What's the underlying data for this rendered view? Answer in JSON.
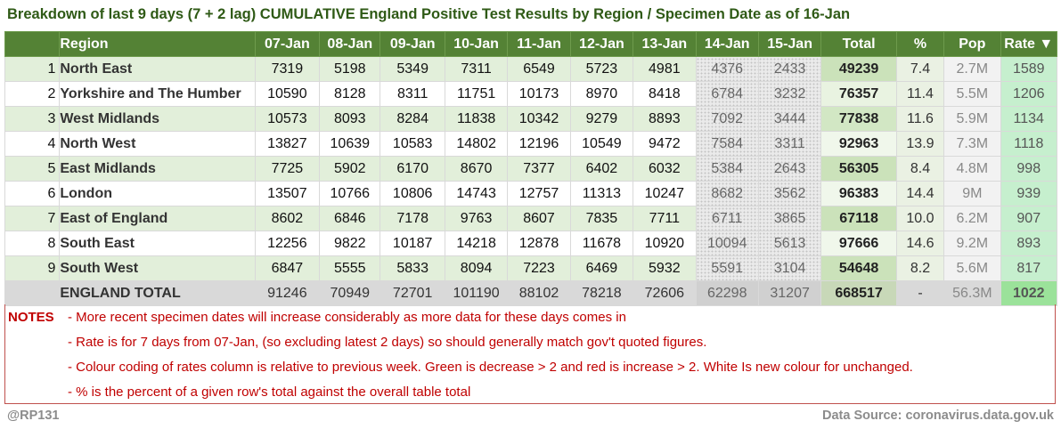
{
  "title": "Breakdown of last 9 days (7 + 2 lag) CUMULATIVE England Positive Test Results by Region / Specimen Date as of 16-Jan",
  "headers": {
    "region": "Region",
    "dates": [
      "07-Jan",
      "08-Jan",
      "09-Jan",
      "10-Jan",
      "11-Jan",
      "12-Jan",
      "13-Jan",
      "14-Jan",
      "15-Jan"
    ],
    "total": "Total",
    "pct": "%",
    "pop": "Pop",
    "rate": "Rate ▼"
  },
  "rows": [
    {
      "idx": "1",
      "region": "North East",
      "vals": [
        "7319",
        "5198",
        "5349",
        "7311",
        "6549",
        "5723",
        "4981",
        "4376",
        "2433"
      ],
      "total": "49239",
      "pct": "7.4",
      "pop": "2.7M",
      "rate": "1589",
      "total_shade": 0.55
    },
    {
      "idx": "2",
      "region": "Yorkshire and The Humber",
      "vals": [
        "10590",
        "8128",
        "8311",
        "11751",
        "10173",
        "8970",
        "8418",
        "6784",
        "3232"
      ],
      "total": "76357",
      "pct": "11.4",
      "pop": "5.5M",
      "rate": "1206",
      "total_shade": 0.15
    },
    {
      "idx": "3",
      "region": "West Midlands",
      "vals": [
        "10573",
        "8093",
        "8284",
        "11838",
        "10342",
        "9279",
        "8893",
        "7092",
        "3444"
      ],
      "total": "77838",
      "pct": "11.6",
      "pop": "5.9M",
      "rate": "1134",
      "total_shade": 0.45
    },
    {
      "idx": "4",
      "region": "North West",
      "vals": [
        "13827",
        "10639",
        "10583",
        "14802",
        "12196",
        "10549",
        "9472",
        "7584",
        "3311"
      ],
      "total": "92963",
      "pct": "13.9",
      "pop": "7.3M",
      "rate": "1118",
      "total_shade": 0.05
    },
    {
      "idx": "5",
      "region": "East Midlands",
      "vals": [
        "7725",
        "5902",
        "6170",
        "8670",
        "7377",
        "6402",
        "6032",
        "5384",
        "2643"
      ],
      "total": "56305",
      "pct": "8.4",
      "pop": "4.8M",
      "rate": "998",
      "total_shade": 0.55
    },
    {
      "idx": "6",
      "region": "London",
      "vals": [
        "13507",
        "10766",
        "10806",
        "14743",
        "12757",
        "11313",
        "10247",
        "8682",
        "3562"
      ],
      "total": "96383",
      "pct": "14.4",
      "pop": "9M",
      "rate": "939",
      "total_shade": 0.05
    },
    {
      "idx": "7",
      "region": "East of England",
      "vals": [
        "8602",
        "6846",
        "7178",
        "9763",
        "8607",
        "7835",
        "7711",
        "6711",
        "3865"
      ],
      "total": "67118",
      "pct": "10.0",
      "pop": "6.2M",
      "rate": "907",
      "total_shade": 0.55
    },
    {
      "idx": "8",
      "region": "South East",
      "vals": [
        "12256",
        "9822",
        "10187",
        "14218",
        "12878",
        "11678",
        "10920",
        "10094",
        "5613"
      ],
      "total": "97666",
      "pct": "14.6",
      "pop": "9.2M",
      "rate": "893",
      "total_shade": 0.05
    },
    {
      "idx": "9",
      "region": "South West",
      "vals": [
        "6847",
        "5555",
        "5833",
        "8094",
        "7223",
        "6469",
        "5932",
        "5591",
        "3104"
      ],
      "total": "54648",
      "pct": "8.2",
      "pop": "5.6M",
      "rate": "817",
      "total_shade": 0.55
    }
  ],
  "total_row": {
    "label": "ENGLAND TOTAL",
    "vals": [
      "91246",
      "70949",
      "72701",
      "101190",
      "88102",
      "78218",
      "72606",
      "62298",
      "31207"
    ],
    "total": "668517",
    "pct": "-",
    "pop": "56.3M",
    "rate": "1022"
  },
  "notes": {
    "label": "NOTES",
    "lines": [
      "- More recent specimen dates will increase considerably as more data for these days comes in",
      "- Rate is for 7 days from 07-Jan, (so excluding latest 2 days) so should generally match gov't quoted figures.",
      "- Colour coding of rates column is relative to previous week. Green is decrease > 2 and red is increase > 2. White Is new colour for unchanged.",
      "- % is the percent of a given row's total against the overall table total"
    ]
  },
  "footer": {
    "author": "@RP131",
    "source": "Data Source: coronavirus.data.gov.uk"
  },
  "colors": {
    "header_green": "#548235",
    "title_green": "#2f5a16",
    "band_green": "#e2efda",
    "rate_green": "#c6efce",
    "notes_red": "#c00000",
    "footer_grey": "#8c8c8c"
  }
}
